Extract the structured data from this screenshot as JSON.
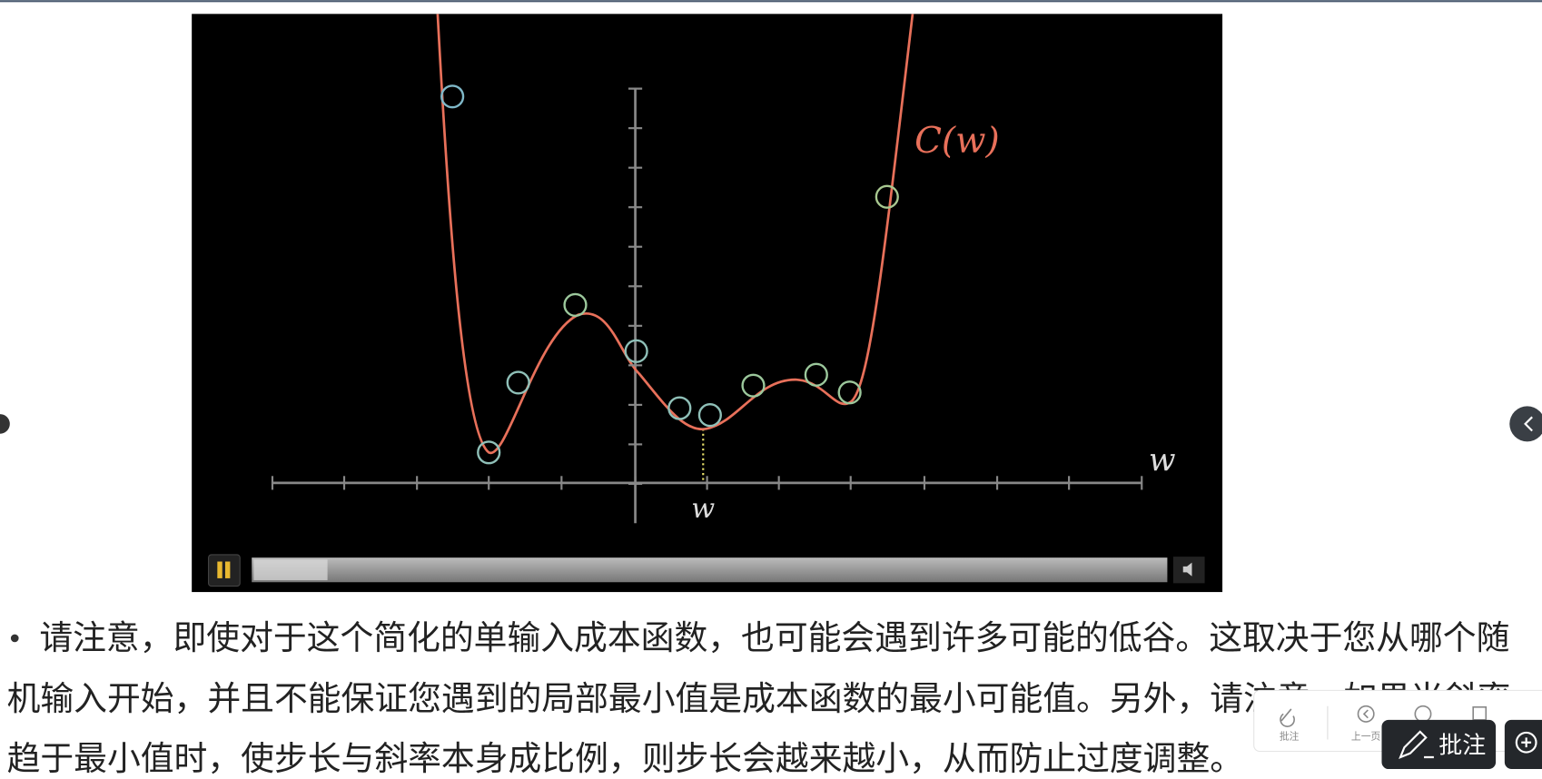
{
  "video": {
    "curve_label": "C(w)",
    "x_axis_label": "w",
    "marker_label": "w"
  },
  "paragraph": {
    "lines": [
      "请注意，即使对于这个简化的单输入成本函数，也可能会遇到许多可能的低谷。这取决于您从哪个随",
      "机输入开始，并且不能保证您遇到的局部最小值是成本函数的最小可能值。另外，请注意，如果当斜率",
      "趋于最小值时，使步长与斜率本身成比例，则步长会越来越小，从而防止过度调整。"
    ]
  },
  "toolbar": {
    "items": [
      "批注",
      "上一页"
    ],
    "annotate_button": "批注"
  }
}
